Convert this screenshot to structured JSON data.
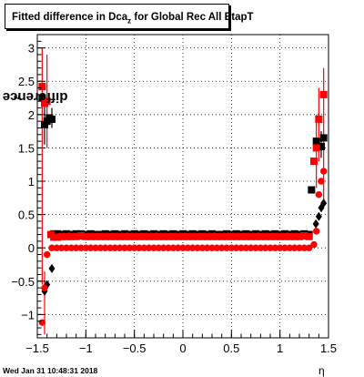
{
  "title": {
    "main": "Fitted difference in Dca",
    "sub": "z",
    "rest": " for Global Rec All EtapT"
  },
  "ylabel": {
    "main": "difference in Dca",
    "sub": "z"
  },
  "xlabel": "η",
  "timestamp": "Wed Jan 31 10:48:31 2018",
  "colors": {
    "black_series": "#000000",
    "red_series": "#ff0000",
    "grid": "#000000"
  },
  "chart_data": {
    "type": "scatter",
    "xlim": [
      -1.5,
      1.5
    ],
    "ylim": [
      -1.35,
      3.2
    ],
    "grid": true,
    "xticks": [
      "-1.5",
      "-1",
      "-0.5",
      "0",
      "0.5",
      "1",
      "1.5"
    ],
    "yticks": [
      "-1",
      "-0.5",
      "0",
      "0.5",
      "1",
      "1.5",
      "2",
      "2.5",
      "3"
    ],
    "series": [
      {
        "marker": "square",
        "color": "#000000",
        "points": [
          {
            "x": -1.45,
            "y": 2.25
          },
          {
            "x": -1.425,
            "y": 1.85
          },
          {
            "x": -1.4,
            "y": 1.9
          },
          {
            "x": -1.375,
            "y": 1.95
          },
          {
            "x": -1.35,
            "y": 1.93
          },
          {
            "x": -1.33,
            "y": 0.21
          },
          {
            "x": -1.29,
            "y": 0.21
          },
          {
            "x": -1.25,
            "y": 0.2
          },
          {
            "x": -1.2,
            "y": 0.21
          },
          {
            "x": -1.15,
            "y": 0.2
          },
          {
            "x": -1.1,
            "y": 0.21
          },
          {
            "x": -1.05,
            "y": 0.21
          },
          {
            "x": -1.0,
            "y": 0.2
          },
          {
            "x": -0.95,
            "y": 0.21
          },
          {
            "x": -0.9,
            "y": 0.2
          },
          {
            "x": -0.85,
            "y": 0.2
          },
          {
            "x": -0.8,
            "y": 0.21
          },
          {
            "x": -0.75,
            "y": 0.2
          },
          {
            "x": -0.7,
            "y": 0.21
          },
          {
            "x": -0.65,
            "y": 0.2
          },
          {
            "x": -0.6,
            "y": 0.21
          },
          {
            "x": -0.55,
            "y": 0.2
          },
          {
            "x": -0.5,
            "y": 0.21
          },
          {
            "x": -0.45,
            "y": 0.2
          },
          {
            "x": -0.4,
            "y": 0.21
          },
          {
            "x": -0.35,
            "y": 0.2
          },
          {
            "x": -0.3,
            "y": 0.21
          },
          {
            "x": -0.25,
            "y": 0.2
          },
          {
            "x": -0.2,
            "y": 0.21
          },
          {
            "x": -0.15,
            "y": 0.2
          },
          {
            "x": -0.1,
            "y": 0.21
          },
          {
            "x": -0.05,
            "y": 0.2
          },
          {
            "x": 0.0,
            "y": 0.21
          },
          {
            "x": 0.05,
            "y": 0.2
          },
          {
            "x": 0.1,
            "y": 0.21
          },
          {
            "x": 0.15,
            "y": 0.2
          },
          {
            "x": 0.2,
            "y": 0.21
          },
          {
            "x": 0.25,
            "y": 0.2
          },
          {
            "x": 0.3,
            "y": 0.21
          },
          {
            "x": 0.35,
            "y": 0.2
          },
          {
            "x": 0.4,
            "y": 0.2
          },
          {
            "x": 0.45,
            "y": 0.21
          },
          {
            "x": 0.5,
            "y": 0.2
          },
          {
            "x": 0.55,
            "y": 0.21
          },
          {
            "x": 0.6,
            "y": 0.2
          },
          {
            "x": 0.65,
            "y": 0.21
          },
          {
            "x": 0.7,
            "y": 0.2
          },
          {
            "x": 0.75,
            "y": 0.21
          },
          {
            "x": 0.8,
            "y": 0.2
          },
          {
            "x": 0.85,
            "y": 0.21
          },
          {
            "x": 0.9,
            "y": 0.2
          },
          {
            "x": 0.95,
            "y": 0.21
          },
          {
            "x": 1.0,
            "y": 0.2
          },
          {
            "x": 1.05,
            "y": 0.21
          },
          {
            "x": 1.1,
            "y": 0.2
          },
          {
            "x": 1.15,
            "y": 0.21
          },
          {
            "x": 1.2,
            "y": 0.2
          },
          {
            "x": 1.25,
            "y": 0.21
          },
          {
            "x": 1.3,
            "y": 0.2
          },
          {
            "x": 1.325,
            "y": 0.87
          },
          {
            "x": 1.375,
            "y": 1.6
          },
          {
            "x": 1.425,
            "y": 1.52
          },
          {
            "x": 1.45,
            "y": 1.65
          }
        ]
      },
      {
        "marker": "square",
        "color": "#ff0000",
        "points": [
          {
            "x": -1.45,
            "y": 2.42
          },
          {
            "x": -1.425,
            "y": 2.17
          },
          {
            "x": -1.4,
            "y": 2.2
          },
          {
            "x": -1.36,
            "y": 0.2
          },
          {
            "x": -1.33,
            "y": 0.16
          },
          {
            "x": -1.29,
            "y": 0.16
          },
          {
            "x": -1.25,
            "y": 0.17
          },
          {
            "x": -1.2,
            "y": 0.17
          },
          {
            "x": -1.15,
            "y": 0.17
          },
          {
            "x": -1.1,
            "y": 0.17
          },
          {
            "x": -1.05,
            "y": 0.18
          },
          {
            "x": -1.0,
            "y": 0.17
          },
          {
            "x": -0.95,
            "y": 0.17
          },
          {
            "x": -0.9,
            "y": 0.17
          },
          {
            "x": -0.85,
            "y": 0.17
          },
          {
            "x": -0.8,
            "y": 0.17
          },
          {
            "x": -0.75,
            "y": 0.17
          },
          {
            "x": -0.7,
            "y": 0.17
          },
          {
            "x": -0.65,
            "y": 0.17
          },
          {
            "x": -0.6,
            "y": 0.17
          },
          {
            "x": -0.55,
            "y": 0.17
          },
          {
            "x": -0.5,
            "y": 0.17
          },
          {
            "x": -0.45,
            "y": 0.17
          },
          {
            "x": -0.4,
            "y": 0.17
          },
          {
            "x": -0.35,
            "y": 0.17
          },
          {
            "x": -0.3,
            "y": 0.17
          },
          {
            "x": -0.25,
            "y": 0.17
          },
          {
            "x": -0.2,
            "y": 0.17
          },
          {
            "x": -0.15,
            "y": 0.17
          },
          {
            "x": -0.1,
            "y": 0.17
          },
          {
            "x": -0.05,
            "y": 0.17
          },
          {
            "x": 0.0,
            "y": 0.17
          },
          {
            "x": 0.05,
            "y": 0.17
          },
          {
            "x": 0.1,
            "y": 0.17
          },
          {
            "x": 0.15,
            "y": 0.17
          },
          {
            "x": 0.2,
            "y": 0.17
          },
          {
            "x": 0.25,
            "y": 0.17
          },
          {
            "x": 0.3,
            "y": 0.17
          },
          {
            "x": 0.35,
            "y": 0.17
          },
          {
            "x": 0.4,
            "y": 0.17
          },
          {
            "x": 0.45,
            "y": 0.17
          },
          {
            "x": 0.5,
            "y": 0.17
          },
          {
            "x": 0.55,
            "y": 0.17
          },
          {
            "x": 0.6,
            "y": 0.17
          },
          {
            "x": 0.65,
            "y": 0.17
          },
          {
            "x": 0.7,
            "y": 0.17
          },
          {
            "x": 0.75,
            "y": 0.17
          },
          {
            "x": 0.8,
            "y": 0.17
          },
          {
            "x": 0.85,
            "y": 0.17
          },
          {
            "x": 0.9,
            "y": 0.17
          },
          {
            "x": 0.95,
            "y": 0.17
          },
          {
            "x": 1.0,
            "y": 0.17
          },
          {
            "x": 1.05,
            "y": 0.17
          },
          {
            "x": 1.1,
            "y": 0.17
          },
          {
            "x": 1.15,
            "y": 0.17
          },
          {
            "x": 1.2,
            "y": 0.17
          },
          {
            "x": 1.25,
            "y": 0.18
          },
          {
            "x": 1.3,
            "y": 0.17
          },
          {
            "x": 1.35,
            "y": 1.3
          },
          {
            "x": 1.375,
            "y": 1.5
          },
          {
            "x": 1.4,
            "y": 1.93
          },
          {
            "x": 1.45,
            "y": 2.3
          }
        ]
      },
      {
        "marker": "diamond",
        "color": "#000000",
        "points": [
          {
            "x": -1.425,
            "y": -0.65
          },
          {
            "x": -1.4,
            "y": -0.55
          },
          {
            "x": -1.35,
            "y": -0.31
          },
          {
            "x": 1.37,
            "y": 0.36
          },
          {
            "x": 1.4,
            "y": 0.47
          },
          {
            "x": 1.425,
            "y": 0.6
          },
          {
            "x": 1.45,
            "y": 0.67
          }
        ]
      },
      {
        "marker": "circle",
        "color": "#ff0000",
        "points": [
          {
            "x": -1.45,
            "y": -1.12
          },
          {
            "x": -1.425,
            "y": -0.6
          },
          {
            "x": -1.4,
            "y": -0.1
          },
          {
            "x": -1.35,
            "y": 0.0
          },
          {
            "x": -1.3,
            "y": 0.0
          },
          {
            "x": -1.25,
            "y": 0.0
          },
          {
            "x": -1.2,
            "y": 0.0
          },
          {
            "x": -1.15,
            "y": 0.0
          },
          {
            "x": -1.1,
            "y": 0.0
          },
          {
            "x": -1.05,
            "y": 0.0
          },
          {
            "x": -1.0,
            "y": 0.0
          },
          {
            "x": -0.95,
            "y": 0.0
          },
          {
            "x": -0.9,
            "y": 0.0
          },
          {
            "x": -0.85,
            "y": 0.0
          },
          {
            "x": -0.8,
            "y": 0.0
          },
          {
            "x": -0.75,
            "y": 0.0
          },
          {
            "x": -0.7,
            "y": 0.0
          },
          {
            "x": -0.65,
            "y": 0.0
          },
          {
            "x": -0.6,
            "y": 0.0
          },
          {
            "x": -0.55,
            "y": 0.0
          },
          {
            "x": -0.5,
            "y": 0.0
          },
          {
            "x": -0.45,
            "y": 0.0
          },
          {
            "x": -0.4,
            "y": 0.0
          },
          {
            "x": -0.35,
            "y": 0.0
          },
          {
            "x": -0.3,
            "y": 0.0
          },
          {
            "x": -0.25,
            "y": 0.0
          },
          {
            "x": -0.2,
            "y": 0.0
          },
          {
            "x": -0.15,
            "y": 0.0
          },
          {
            "x": -0.1,
            "y": 0.0
          },
          {
            "x": -0.05,
            "y": 0.0
          },
          {
            "x": 0.0,
            "y": 0.0
          },
          {
            "x": 0.05,
            "y": 0.0
          },
          {
            "x": 0.1,
            "y": 0.0
          },
          {
            "x": 0.15,
            "y": 0.0
          },
          {
            "x": 0.2,
            "y": 0.0
          },
          {
            "x": 0.25,
            "y": 0.0
          },
          {
            "x": 0.3,
            "y": 0.0
          },
          {
            "x": 0.35,
            "y": 0.0
          },
          {
            "x": 0.4,
            "y": 0.0
          },
          {
            "x": 0.45,
            "y": 0.0
          },
          {
            "x": 0.5,
            "y": 0.0
          },
          {
            "x": 0.55,
            "y": 0.0
          },
          {
            "x": 0.6,
            "y": 0.0
          },
          {
            "x": 0.65,
            "y": 0.0
          },
          {
            "x": 0.7,
            "y": 0.0
          },
          {
            "x": 0.75,
            "y": 0.0
          },
          {
            "x": 0.8,
            "y": 0.0
          },
          {
            "x": 0.85,
            "y": 0.0
          },
          {
            "x": 0.9,
            "y": 0.0
          },
          {
            "x": 0.95,
            "y": 0.0
          },
          {
            "x": 1.0,
            "y": 0.0
          },
          {
            "x": 1.05,
            "y": 0.0
          },
          {
            "x": 1.1,
            "y": 0.0
          },
          {
            "x": 1.15,
            "y": 0.0
          },
          {
            "x": 1.2,
            "y": 0.0
          },
          {
            "x": 1.25,
            "y": 0.0
          },
          {
            "x": 1.3,
            "y": 0.0
          },
          {
            "x": 1.35,
            "y": 0.05
          },
          {
            "x": 1.375,
            "y": 0.25
          },
          {
            "x": 1.4,
            "y": 0.8
          },
          {
            "x": 1.425,
            "y": 1.0
          },
          {
            "x": 1.45,
            "y": 1.15
          }
        ]
      }
    ],
    "error_bars": [
      {
        "color": "#ff0000",
        "x": -1.45,
        "low": -0.55,
        "high": 3.0
      },
      {
        "color": "#ff0000",
        "x": -1.425,
        "low": -1.3,
        "high": -0.35
      },
      {
        "color": "#ff0000",
        "x": -1.4,
        "low": 1.5,
        "high": 2.9
      },
      {
        "color": "#000000",
        "x": -1.425,
        "low": 1.55,
        "high": 2.2
      },
      {
        "color": "#000000",
        "x": -1.35,
        "low": 1.8,
        "high": 2.1
      },
      {
        "color": "#ff0000",
        "x": 1.45,
        "low": 0.7,
        "high": 2.7
      },
      {
        "color": "#ff0000",
        "x": 1.4,
        "low": 1.3,
        "high": 2.4
      },
      {
        "color": "#ff0000",
        "x": 1.375,
        "low": 0.9,
        "high": 2.0
      },
      {
        "color": "#000000",
        "x": 1.425,
        "low": 1.35,
        "high": 1.75
      }
    ]
  }
}
